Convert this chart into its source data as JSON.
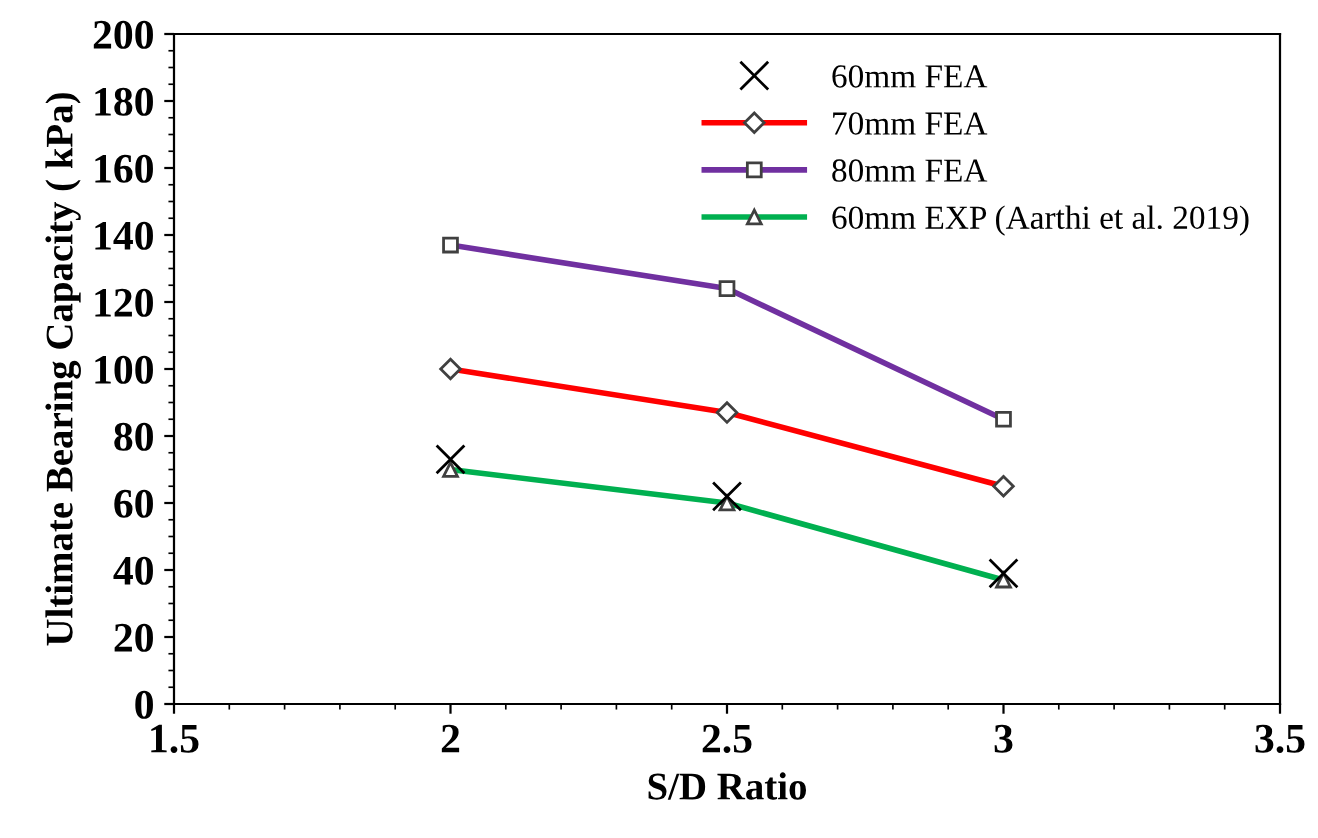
{
  "chart_data": {
    "type": "line",
    "xlabel": "S/D Ratio",
    "ylabel": "Ultimate Bearing Capacity ( kPa)",
    "x": [
      2,
      2.5,
      3
    ],
    "series": [
      {
        "name": "60mm FEA",
        "type": "scatter",
        "color": "#000000",
        "marker": "cross",
        "values": [
          73,
          62,
          39
        ]
      },
      {
        "name": "70mm FEA",
        "color": "#ff0000",
        "marker": "diamond",
        "values": [
          100,
          87,
          65
        ]
      },
      {
        "name": "80mm FEA",
        "color": "#7030a0",
        "marker": "square",
        "values": [
          137,
          124,
          85
        ]
      },
      {
        "name": "60mm EXP (Aarthi et al. 2019)",
        "color": "#00b050",
        "marker": "triangle",
        "values": [
          70,
          60,
          37
        ]
      }
    ],
    "xlim": [
      1.5,
      3.5
    ],
    "xticks": [
      1.5,
      2,
      2.5,
      3,
      3.5
    ],
    "ylim": [
      0,
      200
    ],
    "yticks": [
      0,
      20,
      40,
      60,
      80,
      100,
      120,
      140,
      160,
      180,
      200
    ],
    "grid": false,
    "legend": "top right",
    "line_style": "solid"
  }
}
